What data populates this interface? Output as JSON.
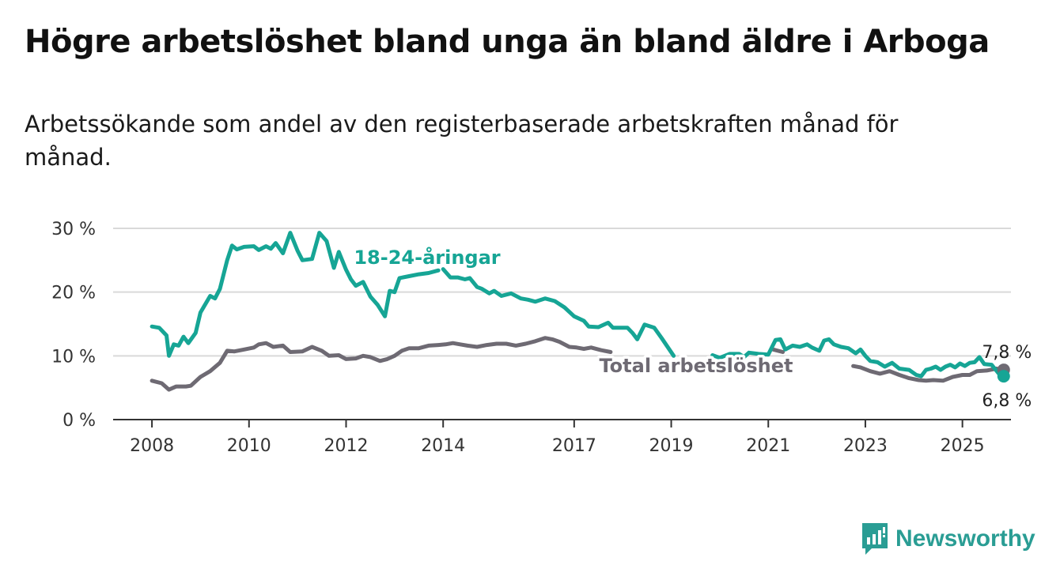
{
  "title": "Högre arbetslöshet bland unga än bland äldre i Arboga",
  "subtitle": "Arbetssökande som andel av den registerbaserade arbetskraften månad för månad.",
  "brand": {
    "name": "Newsworthy",
    "icon": "newsworthy-logo-icon",
    "color": "#2a9d94"
  },
  "colors": {
    "youth": "#16a595",
    "total": "#6e6a73",
    "grid": "#d9d9d9",
    "axis": "#333333"
  },
  "chart_data": {
    "type": "line",
    "title": "",
    "xlabel": "",
    "ylabel": "",
    "x_ticks": [
      "2008",
      "2010",
      "2012",
      "2014",
      "2017",
      "2019",
      "2021",
      "2023",
      "2025"
    ],
    "x_tick_values": [
      2008.0,
      2010.0,
      2012.0,
      2014.0,
      2016.7,
      2018.7,
      2020.7,
      2022.7,
      2024.7
    ],
    "y_ticks": [
      "0 %",
      "10 %",
      "20 %",
      "30 %"
    ],
    "y_tick_values": [
      0,
      10,
      20,
      30
    ],
    "xlim": [
      2007.2,
      2025.7
    ],
    "ylim": [
      0,
      30
    ],
    "grid": true,
    "legend": "labels on lines",
    "series": [
      {
        "name": "18-24-åringar",
        "color": "#16a595",
        "end_label": "6,8 %",
        "points": [
          [
            2008.0,
            14.6
          ],
          [
            2008.15,
            14.4
          ],
          [
            2008.3,
            13.2
          ],
          [
            2008.35,
            10.0
          ],
          [
            2008.45,
            11.8
          ],
          [
            2008.55,
            11.6
          ],
          [
            2008.65,
            13.0
          ],
          [
            2008.75,
            12.0
          ],
          [
            2008.9,
            13.6
          ],
          [
            2009.0,
            16.8
          ],
          [
            2009.2,
            19.4
          ],
          [
            2009.3,
            19.0
          ],
          [
            2009.4,
            20.5
          ],
          [
            2009.55,
            25.0
          ],
          [
            2009.65,
            27.3
          ],
          [
            2009.75,
            26.7
          ],
          [
            2009.9,
            27.1
          ],
          [
            2010.1,
            27.2
          ],
          [
            2010.2,
            26.6
          ],
          [
            2010.35,
            27.2
          ],
          [
            2010.45,
            26.8
          ],
          [
            2010.55,
            27.7
          ],
          [
            2010.7,
            26.1
          ],
          [
            2010.85,
            29.3
          ],
          [
            2011.0,
            26.5
          ],
          [
            2011.1,
            25.0
          ],
          [
            2011.3,
            25.2
          ],
          [
            2011.45,
            29.3
          ],
          [
            2011.6,
            28.0
          ],
          [
            2011.75,
            23.8
          ],
          [
            2011.85,
            26.3
          ],
          [
            2012.0,
            23.5
          ],
          [
            2012.1,
            22.0
          ],
          [
            2012.2,
            21.0
          ],
          [
            2012.35,
            21.6
          ],
          [
            2012.5,
            19.3
          ],
          [
            2012.65,
            18.0
          ],
          [
            2012.8,
            16.2
          ],
          [
            2012.9,
            20.2
          ],
          [
            2013.0,
            20.0
          ],
          [
            2013.1,
            22.2
          ],
          [
            2013.3,
            22.5
          ],
          [
            2013.5,
            22.8
          ],
          [
            2013.7,
            23.0
          ],
          [
            2013.9,
            23.4
          ]
        ],
        "points_b": [
          [
            2014.0,
            23.6
          ],
          [
            2014.15,
            22.3
          ],
          [
            2014.3,
            22.3
          ],
          [
            2014.45,
            22.0
          ],
          [
            2014.55,
            22.2
          ],
          [
            2014.7,
            20.8
          ],
          [
            2014.8,
            20.5
          ],
          [
            2014.95,
            19.8
          ],
          [
            2015.05,
            20.2
          ],
          [
            2015.2,
            19.4
          ],
          [
            2015.4,
            19.8
          ],
          [
            2015.6,
            19.0
          ],
          [
            2015.75,
            18.8
          ],
          [
            2015.9,
            18.5
          ],
          [
            2016.1,
            19.0
          ],
          [
            2016.3,
            18.6
          ],
          [
            2016.5,
            17.6
          ],
          [
            2016.7,
            16.2
          ],
          [
            2016.9,
            15.5
          ],
          [
            2017.0,
            14.6
          ],
          [
            2017.2,
            14.5
          ],
          [
            2017.4,
            15.2
          ],
          [
            2017.5,
            14.4
          ],
          [
            2017.8,
            14.4
          ],
          [
            2017.9,
            13.6
          ],
          [
            2018.0,
            12.6
          ],
          [
            2018.15,
            14.9
          ],
          [
            2018.35,
            14.4
          ],
          [
            2018.5,
            12.8
          ],
          [
            2018.75,
            10.0
          ]
        ],
        "points_c": [
          [
            2019.55,
            10.1
          ],
          [
            2019.7,
            9.7
          ],
          [
            2019.9,
            10.3
          ],
          [
            2020.1,
            10.3
          ],
          [
            2020.2,
            9.8
          ],
          [
            2020.3,
            10.5
          ],
          [
            2020.5,
            10.3
          ],
          [
            2020.7,
            10.2
          ],
          [
            2020.85,
            12.5
          ],
          [
            2020.95,
            12.6
          ],
          [
            2021.05,
            11.0
          ],
          [
            2021.2,
            11.6
          ],
          [
            2021.35,
            11.4
          ],
          [
            2021.5,
            11.8
          ],
          [
            2021.6,
            11.3
          ],
          [
            2021.75,
            10.8
          ],
          [
            2021.85,
            12.4
          ],
          [
            2021.95,
            12.6
          ],
          [
            2022.05,
            11.8
          ],
          [
            2022.2,
            11.4
          ],
          [
            2022.35,
            11.2
          ],
          [
            2022.5,
            10.4
          ],
          [
            2022.6,
            11.0
          ],
          [
            2022.7,
            10.0
          ],
          [
            2022.8,
            9.2
          ],
          [
            2022.95,
            9.0
          ],
          [
            2023.1,
            8.3
          ],
          [
            2023.25,
            8.9
          ],
          [
            2023.4,
            8.0
          ],
          [
            2023.6,
            7.8
          ],
          [
            2023.75,
            7.0
          ],
          [
            2023.85,
            6.8
          ],
          [
            2023.95,
            7.8
          ],
          [
            2024.05,
            8.0
          ],
          [
            2024.15,
            8.3
          ],
          [
            2024.25,
            7.8
          ],
          [
            2024.35,
            8.3
          ],
          [
            2024.45,
            8.6
          ],
          [
            2024.55,
            8.2
          ],
          [
            2024.65,
            8.8
          ],
          [
            2024.75,
            8.4
          ],
          [
            2024.85,
            8.9
          ],
          [
            2024.95,
            9.0
          ],
          [
            2025.05,
            9.8
          ],
          [
            2025.15,
            8.7
          ],
          [
            2025.3,
            8.6
          ],
          [
            2025.45,
            7.2
          ],
          [
            2025.55,
            6.8
          ]
        ]
      },
      {
        "name": "Total arbetslöshet",
        "color": "#6e6a73",
        "end_label": "7,8 %",
        "points": [
          [
            2008.0,
            6.1
          ],
          [
            2008.2,
            5.7
          ],
          [
            2008.35,
            4.7
          ],
          [
            2008.5,
            5.2
          ],
          [
            2008.7,
            5.2
          ],
          [
            2008.8,
            5.3
          ],
          [
            2009.0,
            6.7
          ],
          [
            2009.2,
            7.6
          ],
          [
            2009.4,
            8.9
          ],
          [
            2009.55,
            10.8
          ],
          [
            2009.7,
            10.7
          ],
          [
            2009.9,
            11.0
          ],
          [
            2010.1,
            11.3
          ],
          [
            2010.2,
            11.8
          ],
          [
            2010.35,
            12.0
          ],
          [
            2010.5,
            11.4
          ],
          [
            2010.7,
            11.6
          ],
          [
            2010.85,
            10.6
          ],
          [
            2011.1,
            10.7
          ],
          [
            2011.3,
            11.4
          ],
          [
            2011.5,
            10.8
          ],
          [
            2011.65,
            10.0
          ],
          [
            2011.85,
            10.1
          ],
          [
            2012.0,
            9.5
          ],
          [
            2012.2,
            9.6
          ],
          [
            2012.35,
            10.0
          ],
          [
            2012.5,
            9.8
          ],
          [
            2012.7,
            9.2
          ],
          [
            2012.85,
            9.5
          ],
          [
            2013.0,
            10.0
          ],
          [
            2013.15,
            10.8
          ],
          [
            2013.3,
            11.2
          ],
          [
            2013.5,
            11.2
          ],
          [
            2013.7,
            11.6
          ],
          [
            2013.9,
            11.7
          ],
          [
            2014.05,
            11.8
          ],
          [
            2014.2,
            12.0
          ],
          [
            2014.35,
            11.8
          ],
          [
            2014.5,
            11.6
          ],
          [
            2014.7,
            11.4
          ],
          [
            2014.9,
            11.7
          ],
          [
            2015.1,
            11.9
          ],
          [
            2015.3,
            11.9
          ],
          [
            2015.5,
            11.6
          ],
          [
            2015.7,
            11.9
          ],
          [
            2015.9,
            12.3
          ],
          [
            2016.1,
            12.8
          ],
          [
            2016.25,
            12.6
          ],
          [
            2016.4,
            12.2
          ],
          [
            2016.6,
            11.4
          ],
          [
            2016.75,
            11.3
          ],
          [
            2016.9,
            11.1
          ],
          [
            2017.05,
            11.3
          ],
          [
            2017.25,
            10.9
          ],
          [
            2017.45,
            10.6
          ]
        ],
        "points_b": [
          [
            2020.8,
            11.0
          ],
          [
            2021.0,
            10.6
          ]
        ],
        "points_c": [
          [
            2022.45,
            8.4
          ],
          [
            2022.6,
            8.2
          ],
          [
            2022.8,
            7.6
          ],
          [
            2023.0,
            7.2
          ],
          [
            2023.2,
            7.6
          ],
          [
            2023.4,
            7.0
          ],
          [
            2023.6,
            6.5
          ],
          [
            2023.8,
            6.2
          ],
          [
            2023.95,
            6.1
          ],
          [
            2024.1,
            6.2
          ],
          [
            2024.3,
            6.1
          ],
          [
            2024.5,
            6.7
          ],
          [
            2024.7,
            7.0
          ],
          [
            2024.85,
            7.0
          ],
          [
            2025.0,
            7.6
          ],
          [
            2025.2,
            7.7
          ],
          [
            2025.4,
            8.0
          ],
          [
            2025.55,
            7.8
          ]
        ]
      }
    ],
    "annotations": [
      "18-24-åringar",
      "Total arbetslöshet"
    ]
  }
}
